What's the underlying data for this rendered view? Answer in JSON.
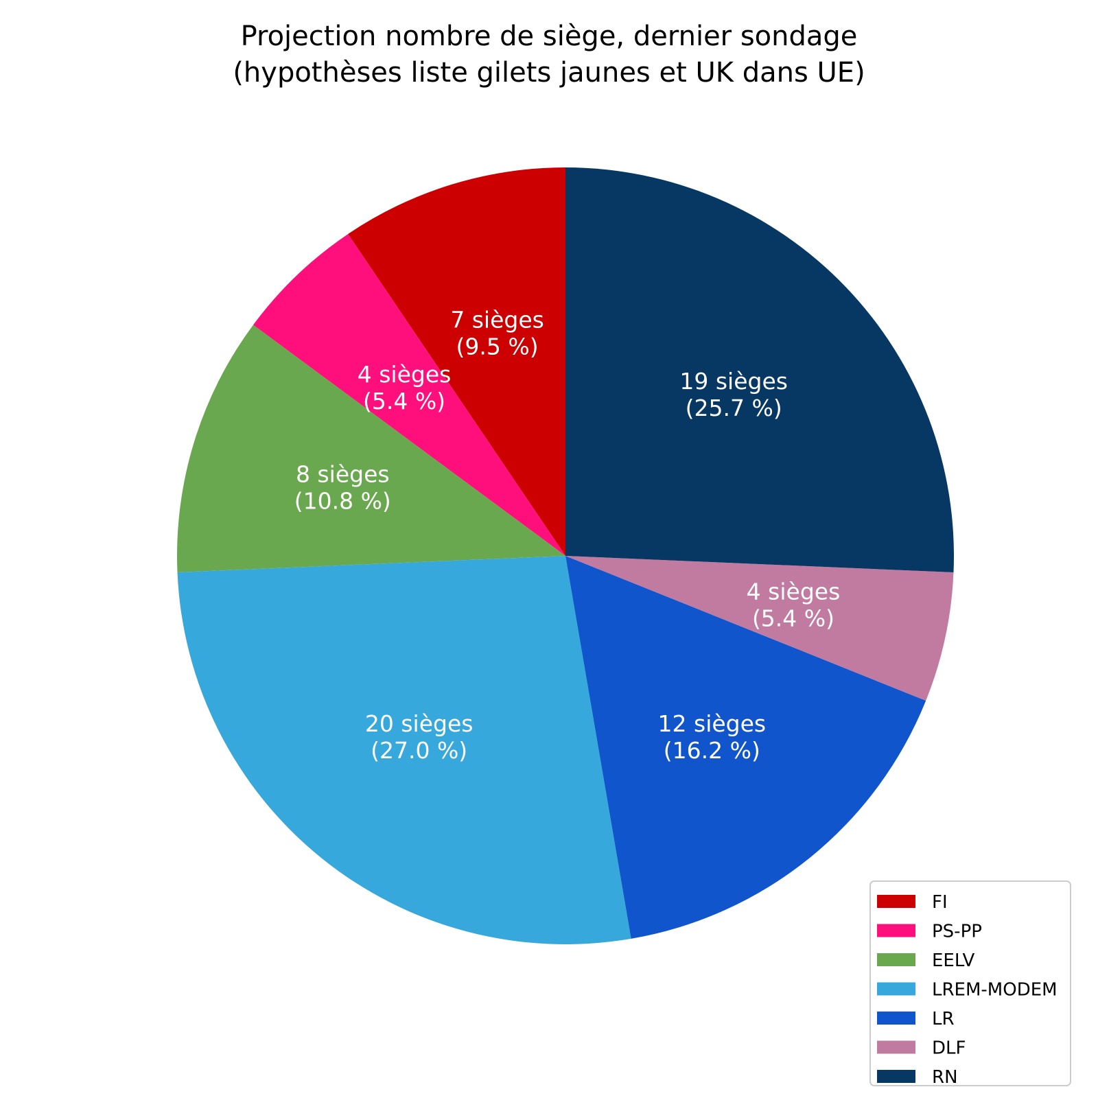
{
  "chart_data": {
    "type": "pie",
    "title_lines": [
      "Projection nombre de siège, dernier sondage",
      "(hypothèses liste gilets jaunes et UK dans UE)"
    ],
    "slices": [
      {
        "name": "FI",
        "seats": 7,
        "percent": 9.5,
        "color": "#cc0000",
        "label_seats": "7 sièges",
        "label_pct": "(9.5 %)"
      },
      {
        "name": "PS-PP",
        "seats": 4,
        "percent": 5.4,
        "color": "#ff0f7b",
        "label_seats": "4 sièges",
        "label_pct": "(5.4 %)"
      },
      {
        "name": "EELV",
        "seats": 8,
        "percent": 10.8,
        "color": "#6aa84f",
        "label_seats": "8 sièges",
        "label_pct": "(10.8 %)"
      },
      {
        "name": "LREM-MODEM",
        "seats": 20,
        "percent": 27.0,
        "color": "#37a8dc",
        "label_seats": "20 sièges",
        "label_pct": "(27.0 %)"
      },
      {
        "name": "LR",
        "seats": 12,
        "percent": 16.2,
        "color": "#1155cc",
        "label_seats": "12 sièges",
        "label_pct": "(16.2 %)"
      },
      {
        "name": "DLF",
        "seats": 4,
        "percent": 5.4,
        "color": "#c27ba0",
        "label_seats": "4 sièges",
        "label_pct": "(5.4 %)"
      },
      {
        "name": "RN",
        "seats": 19,
        "percent": 25.7,
        "color": "#073763",
        "label_seats": "19 sièges",
        "label_pct": "(25.7 %)"
      }
    ],
    "start_angle_deg": 90,
    "direction": "counterclockwise",
    "legend_position": "lower-right"
  }
}
